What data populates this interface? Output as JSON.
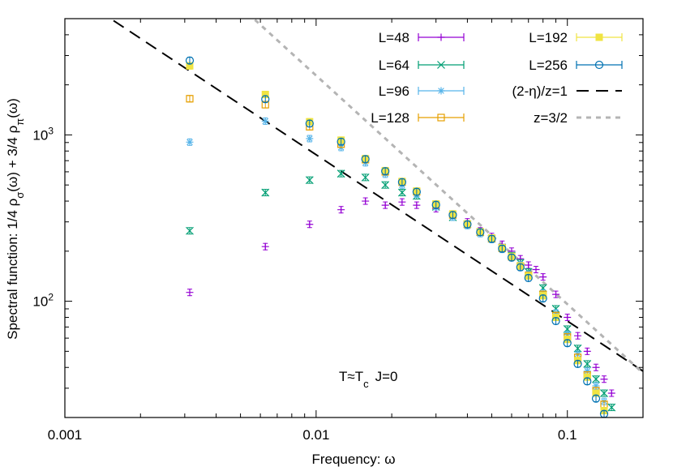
{
  "chart_data": {
    "type": "scatter",
    "title": "",
    "xlabel": "Frequency: ω",
    "ylabel_parts": {
      "a": "Spectral function: 1/4 ρ",
      "a_sub": "σ",
      "b": "(ω) + 3/4 ρ",
      "b_sub": "π",
      "c": "(ω)"
    },
    "x_scale": "log",
    "y_scale": "log",
    "xlim": [
      0.001,
      0.2
    ],
    "ylim": [
      20,
      5000
    ],
    "x_ticks": [
      {
        "value": 0.001,
        "label": "0.001"
      },
      {
        "value": 0.01,
        "label": "0.01"
      },
      {
        "value": 0.1,
        "label": "0.1"
      }
    ],
    "y_ticks": [
      {
        "value": 100,
        "base": "10",
        "exp": "2"
      },
      {
        "value": 1000,
        "base": "10",
        "exp": "3"
      }
    ],
    "grid": false,
    "legend_position": "top-right",
    "annotation": {
      "text1": "T≈T",
      "sub": "c",
      "text2": "J=0"
    },
    "series": [
      {
        "name": "L=48",
        "color": "#9400d3",
        "marker": "plus",
        "x": [
          0.00314,
          0.00628,
          0.00942,
          0.01257,
          0.01571,
          0.01885,
          0.02199,
          0.02513,
          0.03,
          0.035,
          0.04,
          0.045,
          0.05,
          0.055,
          0.06,
          0.065,
          0.07,
          0.075,
          0.08,
          0.09,
          0.1,
          0.11,
          0.12,
          0.13,
          0.14,
          0.15
        ],
        "y": [
          113,
          213,
          290,
          355,
          400,
          378,
          395,
          378,
          360,
          330,
          300,
          265,
          245,
          220,
          200,
          180,
          165,
          155,
          140,
          110,
          80,
          62,
          50,
          40,
          34,
          28
        ]
      },
      {
        "name": "L=64",
        "color": "#009e73",
        "marker": "x",
        "x": [
          0.00314,
          0.00628,
          0.00942,
          0.01257,
          0.01571,
          0.01885,
          0.02199,
          0.02513,
          0.03,
          0.035,
          0.04,
          0.045,
          0.05,
          0.055,
          0.06,
          0.065,
          0.07,
          0.08,
          0.09,
          0.1,
          0.11,
          0.12,
          0.13,
          0.14,
          0.15
        ],
        "y": [
          265,
          450,
          535,
          585,
          555,
          500,
          450,
          430,
          370,
          320,
          290,
          260,
          238,
          210,
          188,
          170,
          150,
          120,
          90,
          68,
          52,
          42,
          34,
          28,
          23
        ]
      },
      {
        "name": "L=96",
        "color": "#56b4e9",
        "marker": "asterisk",
        "x": [
          0.00314,
          0.00628,
          0.00942,
          0.01257,
          0.01571,
          0.01885,
          0.02199,
          0.02513,
          0.03,
          0.035,
          0.04,
          0.045,
          0.05,
          0.055,
          0.06,
          0.065,
          0.07,
          0.08,
          0.09,
          0.1,
          0.11,
          0.12,
          0.13,
          0.14
        ],
        "y": [
          905,
          1210,
          950,
          840,
          680,
          580,
          500,
          440,
          370,
          320,
          285,
          255,
          235,
          205,
          185,
          165,
          145,
          112,
          85,
          63,
          48,
          38,
          31,
          25
        ]
      },
      {
        "name": "L=128",
        "color": "#e69f00",
        "marker": "square-open",
        "x": [
          0.00314,
          0.00628,
          0.00942,
          0.01257,
          0.01571,
          0.01885,
          0.02199,
          0.02513,
          0.03,
          0.035,
          0.04,
          0.045,
          0.05,
          0.055,
          0.06,
          0.065,
          0.07,
          0.08,
          0.09,
          0.1,
          0.11,
          0.12,
          0.13,
          0.14
        ],
        "y": [
          1650,
          1520,
          1120,
          880,
          710,
          600,
          520,
          455,
          380,
          330,
          290,
          260,
          238,
          208,
          185,
          163,
          143,
          110,
          82,
          61,
          46,
          36,
          29,
          24
        ]
      },
      {
        "name": "L=192",
        "color": "#f0e442",
        "marker": "square-filled",
        "x": [
          0.00314,
          0.00628,
          0.00942,
          0.01257,
          0.01571,
          0.01885,
          0.02199,
          0.02513,
          0.03,
          0.035,
          0.04,
          0.045,
          0.05,
          0.055,
          0.06,
          0.065,
          0.07,
          0.08,
          0.09,
          0.1,
          0.11,
          0.12,
          0.13,
          0.14
        ],
        "y": [
          2600,
          1750,
          1200,
          930,
          720,
          610,
          525,
          460,
          385,
          335,
          292,
          262,
          240,
          210,
          186,
          163,
          142,
          108,
          80,
          59,
          44,
          35,
          28,
          22
        ]
      },
      {
        "name": "L=256",
        "color": "#0072b2",
        "marker": "circle-open",
        "x": [
          0.00314,
          0.00628,
          0.00942,
          0.01257,
          0.01571,
          0.01885,
          0.02199,
          0.02513,
          0.03,
          0.035,
          0.04,
          0.045,
          0.05,
          0.055,
          0.06,
          0.065,
          0.07,
          0.08,
          0.09,
          0.1,
          0.11,
          0.12,
          0.13,
          0.14
        ],
        "y": [
          2800,
          1640,
          1170,
          910,
          715,
          605,
          520,
          455,
          380,
          330,
          290,
          260,
          237,
          207,
          183,
          160,
          138,
          104,
          76,
          56,
          42,
          33,
          26,
          21
        ]
      }
    ],
    "reference_lines": [
      {
        "name": "(2-η)/z=1",
        "color": "#000000",
        "style": "dashed",
        "x": [
          0.001,
          0.2
        ],
        "y": [
          7600,
          38
        ]
      },
      {
        "name": "z=3/2",
        "color": "#b4b4b4",
        "style": "dotted",
        "x": [
          0.005,
          0.2
        ],
        "y": [
          5900,
          37
        ]
      }
    ]
  }
}
